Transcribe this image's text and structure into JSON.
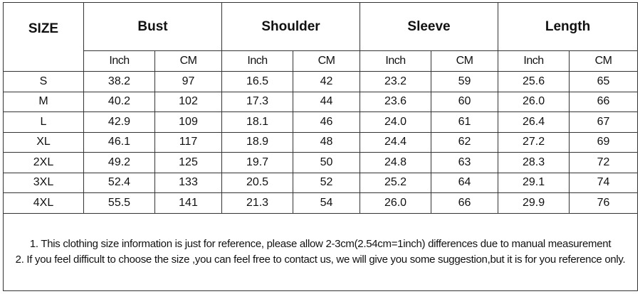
{
  "table": {
    "headers": [
      "SIZE",
      "Bust",
      "Shoulder",
      "Sleeve",
      "Length"
    ],
    "subheaders": [
      "Inch",
      "CM",
      "Inch",
      "CM",
      "Inch",
      "CM",
      "Inch",
      "CM"
    ],
    "rows": [
      [
        "S",
        "38.2",
        "97",
        "16.5",
        "42",
        "23.2",
        "59",
        "25.6",
        "65"
      ],
      [
        "M",
        "40.2",
        "102",
        "17.3",
        "44",
        "23.6",
        "60",
        "26.0",
        "66"
      ],
      [
        "L",
        "42.9",
        "109",
        "18.1",
        "46",
        "24.0",
        "61",
        "26.4",
        "67"
      ],
      [
        "XL",
        "46.1",
        "117",
        "18.9",
        "48",
        "24.4",
        "62",
        "27.2",
        "69"
      ],
      [
        "2XL",
        "49.2",
        "125",
        "19.7",
        "50",
        "24.8",
        "63",
        "28.3",
        "72"
      ],
      [
        "3XL",
        "52.4",
        "133",
        "20.5",
        "52",
        "25.2",
        "64",
        "29.1",
        "74"
      ],
      [
        "4XL",
        "55.5",
        "141",
        "21.3",
        "54",
        "26.0",
        "66",
        "29.9",
        "76"
      ]
    ]
  },
  "notes": [
    "1. This clothing size information is just for reference, please allow 2-3cm(2.54cm=1inch) differences due to manual measurement",
    "2. If you feel difficult to choose the size ,you can feel free to contact us, we will give you some suggestion,but it is for you reference only."
  ]
}
